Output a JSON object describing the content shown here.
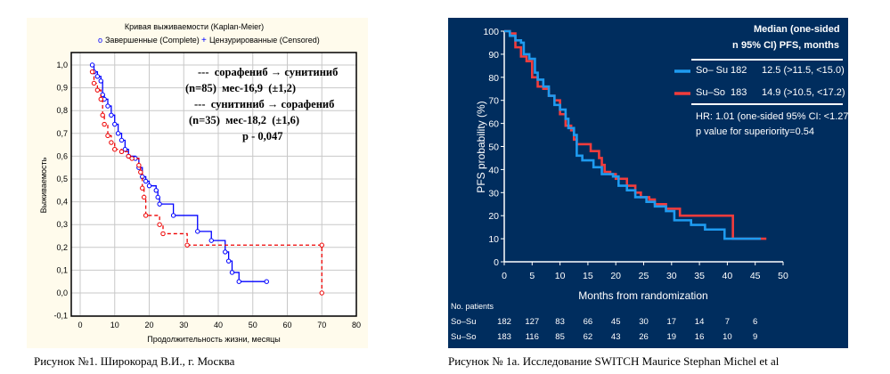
{
  "chart_data": [
    {
      "type": "line",
      "subtype": "kaplan-meier step",
      "title": "Кривая выживаемости (Kaplan-Meier)",
      "legend_markers": [
        {
          "symbol": "o",
          "label": "Завершенные (Complete)"
        },
        {
          "symbol": "+",
          "label": "Цензурированные (Censored)"
        }
      ],
      "xlabel": "Продолжительность жизни, месяцы",
      "ylabel": "Выживаемость",
      "xlim": [
        0,
        80
      ],
      "ylim": [
        -0.1,
        1.0
      ],
      "xticks": [
        "0",
        "10",
        "20",
        "30",
        "40",
        "50",
        "60",
        "70",
        "80"
      ],
      "yticks": [
        "-0,1",
        "0,0",
        "0,1",
        "0,2",
        "0,3",
        "0,4",
        "0,5",
        "0,6",
        "0,7",
        "0,8",
        "0,9",
        "1,0"
      ],
      "grid": true,
      "annotations": [
        "---  сорафениб → сунитиниб",
        "(n=85)  мес-16,9  (±1,2)",
        "---  сунитиниб → сорафениб",
        "(n=35)  мес-18,2  (±1,6)",
        "p - 0,047"
      ],
      "series": [
        {
          "color": "#0000ff",
          "style": "solid",
          "points": [
            [
              3.5,
              1.0
            ],
            [
              4,
              0.97
            ],
            [
              5,
              0.95
            ],
            [
              6,
              0.93
            ],
            [
              6.5,
              0.87
            ],
            [
              7,
              0.85
            ],
            [
              8,
              0.82
            ],
            [
              9,
              0.78
            ],
            [
              10,
              0.74
            ],
            [
              11,
              0.7
            ],
            [
              12,
              0.67
            ],
            [
              13,
              0.63
            ],
            [
              14,
              0.6
            ],
            [
              16,
              0.59
            ],
            [
              17,
              0.55
            ],
            [
              18,
              0.51
            ],
            [
              19,
              0.49
            ],
            [
              20,
              0.47
            ],
            [
              22,
              0.45
            ],
            [
              22.5,
              0.42
            ],
            [
              23,
              0.39
            ],
            [
              27,
              0.34
            ],
            [
              34,
              0.27
            ],
            [
              38,
              0.23
            ],
            [
              42,
              0.18
            ],
            [
              43,
              0.14
            ],
            [
              44,
              0.09
            ],
            [
              46,
              0.05
            ],
            [
              54,
              0.05
            ]
          ]
        },
        {
          "color": "#ee0000",
          "style": "dashed",
          "points": [
            [
              3.5,
              0.97
            ],
            [
              4,
              0.92
            ],
            [
              5,
              0.89
            ],
            [
              6,
              0.85
            ],
            [
              6.5,
              0.78
            ],
            [
              7,
              0.74
            ],
            [
              8,
              0.69
            ],
            [
              9,
              0.66
            ],
            [
              10,
              0.63
            ],
            [
              12,
              0.62
            ],
            [
              14,
              0.6
            ],
            [
              15,
              0.59
            ],
            [
              17,
              0.56
            ],
            [
              17.5,
              0.53
            ],
            [
              18,
              0.46
            ],
            [
              18.5,
              0.42
            ],
            [
              19,
              0.34
            ],
            [
              23,
              0.3
            ],
            [
              24,
              0.26
            ],
            [
              31,
              0.21
            ],
            [
              70,
              0.21
            ],
            [
              70,
              0.0
            ]
          ]
        }
      ],
      "caption": "Рисунок №1. Широкорад В.И., г. Москва"
    },
    {
      "type": "line",
      "subtype": "kaplan-meier step",
      "xlabel": "Months from randomization",
      "ylabel": "PFS probability  (%)",
      "xlim": [
        0,
        50
      ],
      "ylim": [
        0,
        100
      ],
      "xticks": [
        "0",
        "5",
        "10",
        "15",
        "20",
        "25",
        "30",
        "35",
        "40",
        "45",
        "50"
      ],
      "yticks": [
        "0",
        "10",
        "20",
        "30",
        "40",
        "50",
        "60",
        "70",
        "80",
        "90",
        "100"
      ],
      "grid": false,
      "legend": {
        "header_n": "n",
        "header_median_1": "Median (one-sided",
        "header_median_2": "95% CI) PFS, months",
        "rows": [
          {
            "name": "So– Su",
            "n": "182",
            "median": "12.5 (>11.5, <15.0)",
            "color": "#1e9bf0"
          },
          {
            "name": "Su–So",
            "n": "183",
            "median": "14.9 (>10.5, <17.2)",
            "color": "#f23c3c"
          }
        ],
        "hr": "HR: 1.01 (one-sided 95% CI: <1.27)",
        "p": "p value for superiority=0.54"
      },
      "series": [
        {
          "name": "So– Su",
          "color": "#1e9bf0",
          "points": [
            [
              0,
              100
            ],
            [
              1,
              98
            ],
            [
              2,
              96
            ],
            [
              3,
              95
            ],
            [
              3.5,
              90
            ],
            [
              4.5,
              88
            ],
            [
              5.5,
              82
            ],
            [
              6,
              79
            ],
            [
              7,
              76
            ],
            [
              8,
              72
            ],
            [
              9,
              68
            ],
            [
              10,
              66
            ],
            [
              11,
              62
            ],
            [
              11.5,
              58
            ],
            [
              12,
              58
            ],
            [
              12.5,
              55
            ],
            [
              13,
              46
            ],
            [
              14,
              44
            ],
            [
              16,
              41
            ],
            [
              17.5,
              38
            ],
            [
              19.5,
              37
            ],
            [
              20.5,
              33
            ],
            [
              22,
              31
            ],
            [
              23.5,
              28
            ],
            [
              25.5,
              26
            ],
            [
              27,
              24
            ],
            [
              29,
              22
            ],
            [
              30.5,
              18
            ],
            [
              33.5,
              16
            ],
            [
              36,
              14
            ],
            [
              39.5,
              10
            ],
            [
              46,
              10
            ]
          ]
        },
        {
          "name": "Su–So",
          "color": "#f23c3c",
          "points": [
            [
              0,
              100
            ],
            [
              1,
              99
            ],
            [
              2,
              93
            ],
            [
              3,
              89
            ],
            [
              4,
              87
            ],
            [
              5,
              80
            ],
            [
              6,
              76
            ],
            [
              7,
              75
            ],
            [
              8,
              72
            ],
            [
              9,
              70
            ],
            [
              10,
              64
            ],
            [
              11,
              59
            ],
            [
              12,
              57
            ],
            [
              12.5,
              53
            ],
            [
              13,
              51
            ],
            [
              15,
              51
            ],
            [
              15.5,
              48
            ],
            [
              17,
              45
            ],
            [
              17.5,
              42
            ],
            [
              18,
              39
            ],
            [
              19,
              38
            ],
            [
              20,
              36
            ],
            [
              21.5,
              36
            ],
            [
              22,
              33
            ],
            [
              23.5,
              30
            ],
            [
              24.5,
              28
            ],
            [
              26,
              27
            ],
            [
              27,
              25
            ],
            [
              29,
              23
            ],
            [
              31,
              23
            ],
            [
              31.5,
              20
            ],
            [
              41,
              20
            ],
            [
              41,
              10
            ],
            [
              47,
              10
            ]
          ]
        }
      ],
      "at_risk": {
        "label": "No. patients",
        "rows": [
          {
            "name": "So–Su",
            "values": [
              "182",
              "127",
              "83",
              "66",
              "45",
              "30",
              "17",
              "14",
              "7",
              "6"
            ]
          },
          {
            "name": "Su–So",
            "values": [
              "183",
              "116",
              "85",
              "62",
              "43",
              "26",
              "19",
              "16",
              "10",
              "9"
            ]
          }
        ]
      },
      "caption": "Рисунок № 1a. Исследование SWITCH Maurice  Stephan Michel  et al"
    }
  ]
}
